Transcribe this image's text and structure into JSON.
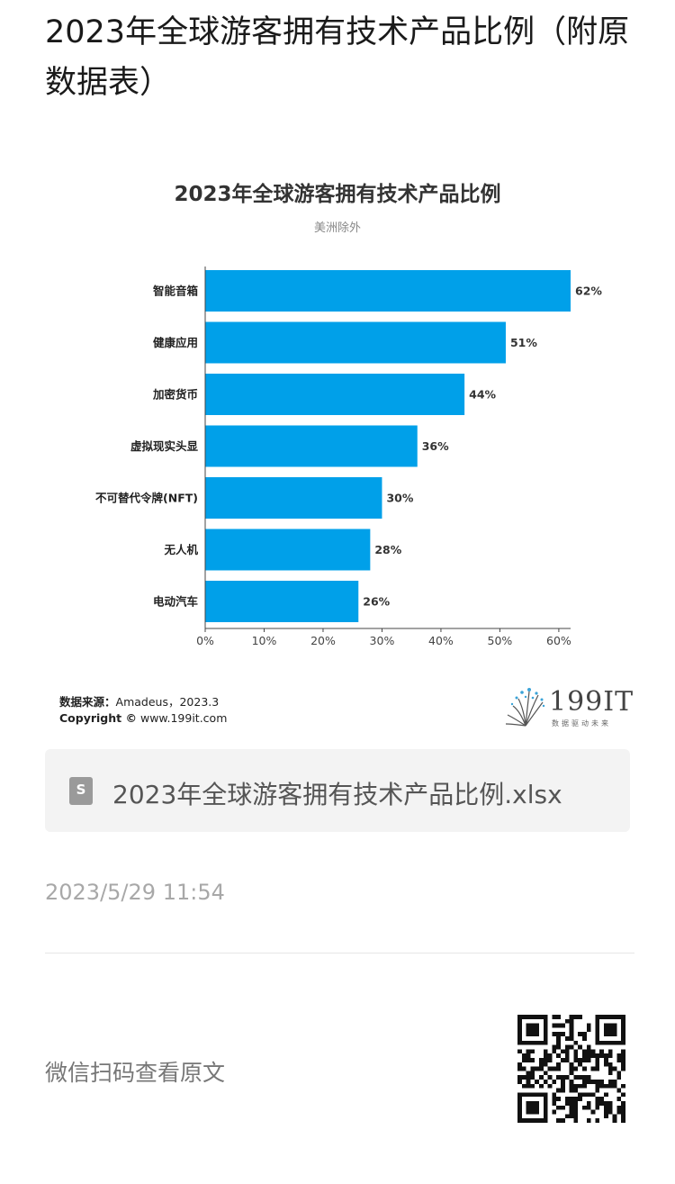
{
  "article": {
    "title": "2023年全球游客拥有技术产品比例（附原数据表）"
  },
  "chart_data": {
    "type": "bar",
    "orientation": "horizontal",
    "title": "2023年全球游客拥有技术产品比例",
    "subtitle": "美洲除外",
    "categories": [
      "智能音箱",
      "健康应用",
      "加密货币",
      "虚拟现实头显",
      "不可替代令牌(NFT)",
      "无人机",
      "电动汽车"
    ],
    "values": [
      62,
      51,
      44,
      36,
      30,
      28,
      26
    ],
    "value_labels": [
      "62%",
      "51%",
      "44%",
      "36%",
      "30%",
      "28%",
      "26%"
    ],
    "xlim": [
      0,
      62
    ],
    "x_ticks": [
      0,
      10,
      20,
      30,
      40,
      50,
      60
    ],
    "x_tick_labels": [
      "0%",
      "10%",
      "20%",
      "30%",
      "40%",
      "50%",
      "60%"
    ],
    "bar_color": "#00a0e9",
    "grid": false
  },
  "footer": {
    "source_label": "数据来源：",
    "source_value": "Amadeus，2023.3",
    "copyright_label": "Copyright ©",
    "copyright_value": "www.199it.com",
    "logo_text": "199IT",
    "logo_sub": "数据驱动未来"
  },
  "attachment": {
    "file_name": "2023年全球游客拥有技术产品比例.xlsx",
    "icon": "spreadsheet-file-icon",
    "icon_letter": "S"
  },
  "meta": {
    "timestamp": "2023/5/29 11:54"
  },
  "qr_section": {
    "label": "微信扫码查看原文",
    "icon": "qr-code-icon"
  }
}
